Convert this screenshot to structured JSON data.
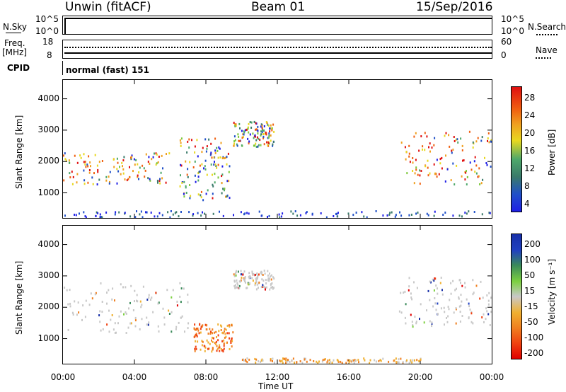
{
  "header": {
    "station": "Unwin (fitACF)",
    "beam": "Beam 01",
    "date": "15/Sep/2016"
  },
  "top_panels": {
    "nsky": {
      "label": "N.Sky",
      "ticks": [
        "10^5",
        "10^0"
      ],
      "right_ticks": [
        "10^5",
        "10^0"
      ],
      "right_label": "N.Search"
    },
    "freq": {
      "label_line1": "Freq.",
      "label_line2": "[MHz]",
      "ticks": [
        "18",
        "8"
      ],
      "right_ticks": [
        "60",
        "0"
      ],
      "right_label": "Nave"
    },
    "cpid": {
      "label": "CPID",
      "text": "normal (fast) 151"
    }
  },
  "x_axis": {
    "ticks": [
      "00:00",
      "04:00",
      "08:00",
      "12:00",
      "16:00",
      "20:00",
      "00:00"
    ],
    "label": "Time UT"
  },
  "chart_data": [
    {
      "type": "heatmap",
      "name": "power",
      "ylabel": "Slant Range [km]",
      "ylim": [
        200,
        4600
      ],
      "y_ticks": [
        "4000",
        "3000",
        "2000",
        "1000"
      ],
      "xlim_hours": [
        0,
        24
      ],
      "colorbar": {
        "label": "Power [dB]",
        "ticks": [
          "28",
          "24",
          "20",
          "16",
          "12",
          "8",
          "4"
        ],
        "range": [
          0,
          30
        ]
      },
      "scatter_regions": [
        {
          "x": [
            0,
            6
          ],
          "y": [
            1300,
            2300
          ],
          "level": "mid-high"
        },
        {
          "x": [
            6.5,
            9.3
          ],
          "y": [
            800,
            2800
          ],
          "level": "mid"
        },
        {
          "x": [
            9.5,
            11.8
          ],
          "y": [
            2500,
            3300
          ],
          "level": "low-mid"
        },
        {
          "x": [
            18.8,
            24
          ],
          "y": [
            1300,
            3000
          ],
          "level": "mid-high"
        },
        {
          "x": [
            0,
            24
          ],
          "y": [
            250,
            450
          ],
          "level": "low"
        }
      ]
    },
    {
      "type": "heatmap",
      "name": "velocity",
      "ylabel": "Slant Range [km]",
      "ylim": [
        200,
        4600
      ],
      "y_ticks": [
        "4000",
        "3000",
        "2000",
        "1000"
      ],
      "xlim_hours": [
        0,
        24
      ],
      "colorbar": {
        "label": "Velocity [m s⁻¹]",
        "ticks": [
          "200",
          "100",
          "50",
          "15",
          "-15",
          "-50",
          "-100",
          "-200"
        ],
        "range": [
          -250,
          250
        ]
      },
      "scatter_regions": [
        {
          "x": [
            0,
            7
          ],
          "y": [
            1200,
            2800
          ],
          "level": "ground scatter"
        },
        {
          "x": [
            7.3,
            9.5
          ],
          "y": [
            600,
            1500
          ],
          "level": "-100 to -50"
        },
        {
          "x": [
            9.5,
            11.8
          ],
          "y": [
            2600,
            3200
          ],
          "level": "ground scatter"
        },
        {
          "x": [
            18.8,
            24
          ],
          "y": [
            1400,
            3000
          ],
          "level": "ground scatter"
        },
        {
          "x": [
            10,
            20
          ],
          "y": [
            250,
            400
          ],
          "level": "-50 to -15"
        }
      ]
    }
  ],
  "colors": {
    "power_scale": [
      "#1f1fe6",
      "#2050c8",
      "#3a7a6a",
      "#4ea86a",
      "#7cc83a",
      "#e8d820",
      "#f0a020",
      "#f06010",
      "#e01010"
    ],
    "velocity_scale": [
      "#e00000",
      "#f04010",
      "#f08020",
      "#f0b030",
      "#c8c8c8",
      "#7cd040",
      "#3a8a5a",
      "#2040c0",
      "#1830a8"
    ]
  }
}
